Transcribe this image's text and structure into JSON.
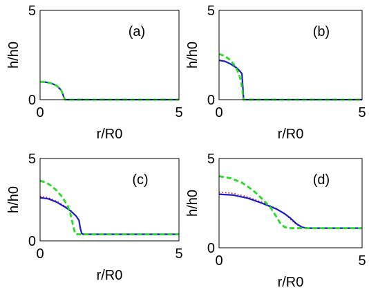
{
  "figure": {
    "background": "#ffffff"
  },
  "chart_data": [
    {
      "type": "line",
      "panel_label": "(a)",
      "xlabel": "r/R0",
      "ylabel": "h/h0",
      "xlim": [
        0,
        5
      ],
      "ylim": [
        0,
        5
      ],
      "xticks": [
        "0",
        "5"
      ],
      "yticks": [
        "0",
        "5"
      ],
      "series": [
        {
          "style": "dotted",
          "color": "#cc0000",
          "x": [
            0,
            0.2,
            0.4,
            0.6,
            0.75,
            0.82,
            0.85,
            0.9,
            5
          ],
          "y": [
            1.0,
            0.98,
            0.92,
            0.78,
            0.55,
            0.3,
            0.15,
            0.0,
            0.0
          ]
        },
        {
          "style": "solid",
          "color": "#1a1acc",
          "x": [
            0,
            0.2,
            0.4,
            0.6,
            0.75,
            0.82,
            0.85,
            0.9,
            5
          ],
          "y": [
            1.0,
            0.98,
            0.92,
            0.78,
            0.55,
            0.3,
            0.15,
            0.0,
            0.0
          ]
        },
        {
          "style": "dashed",
          "color": "#22dd22",
          "x": [
            0,
            0.2,
            0.4,
            0.6,
            0.75,
            0.82,
            0.85,
            0.9,
            5
          ],
          "y": [
            1.0,
            0.98,
            0.92,
            0.78,
            0.55,
            0.3,
            0.15,
            0.0,
            0.0
          ]
        }
      ]
    },
    {
      "type": "line",
      "panel_label": "(b)",
      "xlabel": "r/R0",
      "ylabel": "h/h0",
      "xlim": [
        0,
        5
      ],
      "ylim": [
        0,
        5
      ],
      "xticks": [
        "0",
        "5"
      ],
      "yticks": [
        "0",
        "5"
      ],
      "series": [
        {
          "style": "dotted",
          "color": "#cc0000",
          "x": [
            0,
            0.2,
            0.4,
            0.6,
            0.7,
            0.75,
            0.8,
            0.82,
            0.86,
            5
          ],
          "y": [
            2.2,
            2.15,
            2.0,
            1.8,
            1.65,
            1.55,
            1.45,
            1.0,
            0.0,
            0.0
          ]
        },
        {
          "style": "solid",
          "color": "#1a1acc",
          "x": [
            0,
            0.2,
            0.4,
            0.6,
            0.7,
            0.75,
            0.8,
            0.82,
            0.86,
            5
          ],
          "y": [
            2.2,
            2.15,
            2.0,
            1.8,
            1.65,
            1.55,
            1.45,
            1.0,
            0.0,
            0.0
          ]
        },
        {
          "style": "dashed",
          "color": "#22dd22",
          "x": [
            0,
            0.2,
            0.4,
            0.55,
            0.65,
            0.72,
            0.78,
            0.82,
            0.85,
            5
          ],
          "y": [
            2.55,
            2.45,
            2.2,
            1.9,
            1.6,
            1.3,
            0.9,
            0.5,
            0.0,
            0.0
          ]
        }
      ]
    },
    {
      "type": "line",
      "panel_label": "(c)",
      "xlabel": "r/R0",
      "ylabel": "h/h0",
      "xlim": [
        0,
        5
      ],
      "ylim": [
        0,
        5
      ],
      "xticks": [
        "0",
        "5"
      ],
      "yticks": [
        "0",
        "5"
      ],
      "series": [
        {
          "style": "dotted",
          "color": "#cc0000",
          "x": [
            0,
            0.3,
            0.6,
            0.9,
            1.1,
            1.3,
            1.4,
            1.45,
            1.5,
            1.55,
            5
          ],
          "y": [
            2.72,
            2.62,
            2.4,
            2.1,
            1.85,
            1.5,
            1.2,
            0.7,
            0.45,
            0.4,
            0.4
          ]
        },
        {
          "style": "solid",
          "color": "#1a1acc",
          "x": [
            0,
            0.3,
            0.6,
            0.9,
            1.1,
            1.3,
            1.4,
            1.45,
            1.5,
            1.55,
            5
          ],
          "y": [
            2.62,
            2.55,
            2.35,
            2.05,
            1.82,
            1.5,
            1.25,
            0.75,
            0.45,
            0.4,
            0.4
          ]
        },
        {
          "style": "dashed",
          "color": "#22dd22",
          "x": [
            0,
            0.2,
            0.4,
            0.6,
            0.8,
            1.0,
            1.1,
            1.18,
            1.25,
            1.3,
            5
          ],
          "y": [
            3.65,
            3.55,
            3.35,
            3.05,
            2.65,
            2.1,
            1.6,
            1.0,
            0.5,
            0.4,
            0.4
          ]
        }
      ]
    },
    {
      "type": "line",
      "panel_label": "(d)",
      "xlabel": "r/R0",
      "ylabel": "h/h0",
      "xlim": [
        0,
        5
      ],
      "ylim": [
        0,
        5
      ],
      "xticks": [
        "0",
        "5"
      ],
      "yticks": [
        "0",
        "5"
      ],
      "series": [
        {
          "style": "dotted",
          "color": "#cc0000",
          "x": [
            0,
            0.5,
            1.0,
            1.5,
            2.0,
            2.3,
            2.5,
            2.7,
            2.9,
            3.1,
            5
          ],
          "y": [
            3.12,
            3.05,
            2.85,
            2.55,
            2.2,
            1.9,
            1.6,
            1.3,
            1.15,
            1.1,
            1.1
          ]
        },
        {
          "style": "solid",
          "color": "#1a1acc",
          "x": [
            0,
            0.5,
            1.0,
            1.5,
            2.0,
            2.3,
            2.5,
            2.7,
            2.9,
            3.1,
            5
          ],
          "y": [
            3.0,
            2.95,
            2.78,
            2.5,
            2.18,
            1.9,
            1.65,
            1.35,
            1.15,
            1.1,
            1.1
          ]
        },
        {
          "style": "dashed",
          "color": "#22dd22",
          "x": [
            0,
            0.4,
            0.8,
            1.2,
            1.5,
            1.8,
            2.0,
            2.15,
            2.3,
            2.5,
            5
          ],
          "y": [
            4.0,
            3.9,
            3.65,
            3.2,
            2.75,
            2.25,
            1.75,
            1.35,
            1.15,
            1.1,
            1.1
          ]
        }
      ]
    }
  ]
}
